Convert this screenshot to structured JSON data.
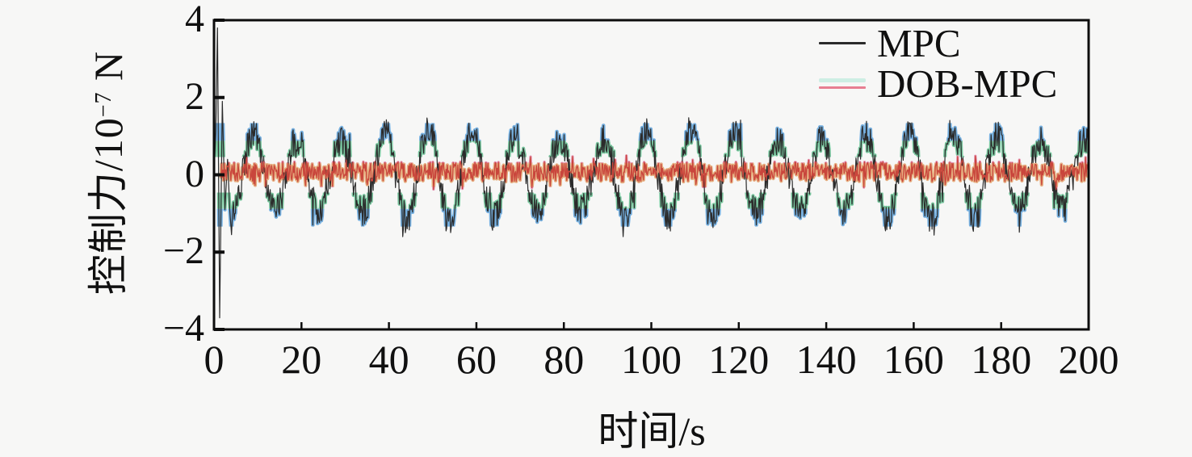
{
  "figure": {
    "background": "#f7f7f6",
    "axis_color": "#0d0d0d"
  },
  "chart_data": {
    "type": "line",
    "title": "",
    "xlabel": "时间/s",
    "ylabel": "控制力/10⁻⁷ N",
    "ylabel_parts": {
      "prefix": "控制力/10",
      "exponent": "−7",
      "suffix": " N"
    },
    "xlim": [
      0,
      200
    ],
    "ylim": [
      -4,
      4
    ],
    "grid": false,
    "xticks": [
      {
        "value": 0,
        "label": "0"
      },
      {
        "value": 20,
        "label": "20"
      },
      {
        "value": 40,
        "label": "40"
      },
      {
        "value": 60,
        "label": "60"
      },
      {
        "value": 80,
        "label": "80"
      },
      {
        "value": 100,
        "label": "100"
      },
      {
        "value": 120,
        "label": "120"
      },
      {
        "value": 140,
        "label": "140"
      },
      {
        "value": 160,
        "label": "160"
      },
      {
        "value": 180,
        "label": "180"
      },
      {
        "value": 200,
        "label": "200"
      }
    ],
    "yticks": [
      {
        "value": 4,
        "label": "4"
      },
      {
        "value": 2,
        "label": "2"
      },
      {
        "value": 0,
        "label": "0"
      },
      {
        "value": -2,
        "label": "−2"
      },
      {
        "value": -4,
        "label": "−4"
      }
    ],
    "legend": {
      "position": "top-right-inside",
      "entries": [
        {
          "label": "MPC",
          "color": "#2b2b2b",
          "swatch_display_color": "#2b2b2b",
          "swatch_artifact_color": ""
        },
        {
          "label": "DOB-MPC",
          "color": "#c9463c",
          "swatch_display_color": "#e77f92",
          "swatch_artifact_color": "#cdeee4"
        }
      ]
    },
    "series": [
      {
        "name": "MPC",
        "color": "#2b2b2b",
        "line_width": 1.2,
        "dt": 0.15,
        "seed": 20177,
        "description": "large startup transient spike (≈+3.8 to −3.7 within first 2 s), then noisy sinusoid, period ≈10 s, amplitude ≈±1.1 (noise to ±1.5), peaks near t = 9,19,29,…199 s",
        "transient_points": [
          [
            0,
            0
          ],
          [
            0.4,
            1.1
          ],
          [
            0.8,
            3.8
          ],
          [
            1.3,
            -3.7
          ],
          [
            1.9,
            1.9
          ],
          [
            2.5,
            -0.9
          ],
          [
            3.1,
            0.4
          ],
          [
            3.6,
            -0.9
          ],
          [
            4.0,
            -1.55
          ]
        ],
        "steady": {
          "start": 4.15,
          "end": 200,
          "amplitude": 1.04,
          "amplitude_mod": 0.16,
          "period": 10,
          "peak_time": 9,
          "noise": 0.4,
          "clamp": 1.6
        }
      },
      {
        "name": "DOB-MPC",
        "color": "#c9463c",
        "line_width": 1.3,
        "dt": 0.15,
        "seed": 9041,
        "description": "small-amplitude noise about zero, mean ≈ +0.08, spread ≈ ±0.3, from t ≈ 2 s to 200 s",
        "steady": {
          "start": 1.6,
          "end": 200,
          "mean": 0.08,
          "noise": 0.26,
          "clamp": 0.55
        }
      }
    ],
    "artifact_overlays": [
      {
        "name": "green-flank-artifact",
        "series": 0,
        "color": "#7ac8a0",
        "band": [
          0.46,
          0.88
        ],
        "width": 4.2
      },
      {
        "name": "blue-peak-artifact",
        "series": 0,
        "color": "#76b0e0",
        "band": [
          0.88,
          1.34
        ],
        "width": 4.6
      },
      {
        "name": "orange-band-artifact",
        "series": 1,
        "color": "#e6af80",
        "band": [
          0.0,
          0.32
        ],
        "width": 4.2
      },
      {
        "name": "pink-fringe-artifact",
        "series": 1,
        "color": "#e694b4",
        "band": [
          0.3,
          0.52
        ],
        "width": 3.2
      }
    ]
  }
}
